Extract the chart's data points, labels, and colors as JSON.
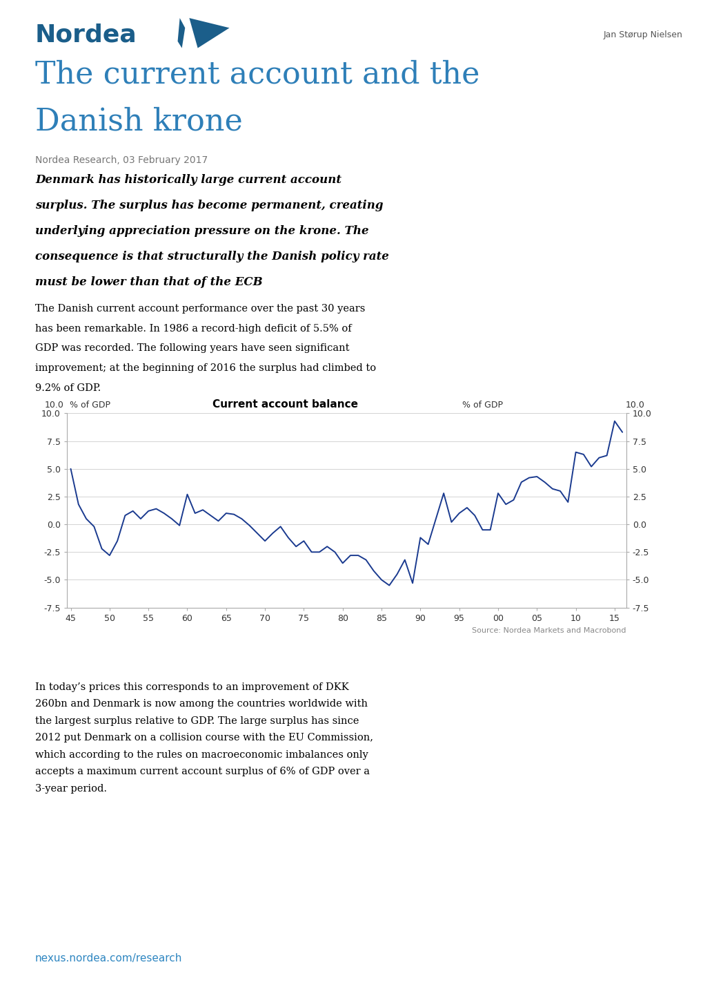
{
  "title_line1": "The current account and the",
  "title_line2": "Danish krone",
  "subtitle": "Nordea Research, 03 February 2017",
  "author": "Jan Størup Nielsen",
  "bold_text": "Denmark has historically large current account surplus. The surplus has become permanent, creating underlying appreciation pressure on the krone. The consequence is that structurally the Danish policy rate must be lower than that of the ECB",
  "para1": "The Danish current account performance over the past 30 years has been remarkable. In 1986 a record-high deficit of 5.5% of GDP was recorded. The following years have seen significant improvement; at the beginning of 2016 the surplus had climbed to 9.2% of GDP.",
  "para2": "In today’s prices this corresponds to an improvement of DKK 260bn and Denmark is now among the countries worldwide with the largest surplus relative to GDP. The large surplus has since 2012 put Denmark on a collision course with the EU Commission, which according to the rules on macroeconomic imbalances only accepts a maximum current account surplus of 6% of GDP over a 3-year period.",
  "chart_title": "Current account balance",
  "chart_ylabel_left": "% of GDP",
  "chart_ylabel_right": "% of GDP",
  "chart_source": "Source: Nordea Markets and Macrobond",
  "chart_color": "#1a3a8f",
  "chart_ylim": [
    -7.5,
    10.0
  ],
  "chart_yticks": [
    -7.5,
    -5.0,
    -2.5,
    0.0,
    2.5,
    5.0,
    7.5,
    10.0
  ],
  "chart_xtick_labels": [
    "45",
    "50",
    "55",
    "60",
    "65",
    "70",
    "75",
    "80",
    "85",
    "90",
    "95",
    "00",
    "05",
    "10",
    "15"
  ],
  "nordea_blue": "#1b5e8a",
  "title_blue": "#2e7fb8",
  "link_color": "#2e86c1",
  "link_text": "nexus.nordea.com/research",
  "x_data": [
    0,
    1,
    2,
    3,
    4,
    5,
    6,
    7,
    8,
    9,
    10,
    11,
    12,
    13,
    14,
    15,
    16,
    17,
    18,
    19,
    20,
    21,
    22,
    23,
    24,
    25,
    26,
    27,
    28,
    29,
    30,
    31,
    32,
    33,
    34,
    35,
    36,
    37,
    38,
    39,
    40,
    41,
    42,
    43,
    44,
    45,
    46,
    47,
    48,
    49,
    50,
    51,
    52,
    53,
    54,
    55,
    56,
    57,
    58,
    59,
    60,
    61,
    62,
    63,
    64,
    65,
    66,
    67,
    68,
    69,
    70,
    71
  ],
  "y_data": [
    5.0,
    1.8,
    0.5,
    -0.2,
    -2.2,
    -2.8,
    -1.5,
    0.8,
    1.2,
    0.5,
    1.2,
    1.4,
    1.0,
    0.5,
    -0.1,
    2.7,
    1.0,
    1.3,
    0.8,
    0.3,
    1.0,
    0.9,
    0.5,
    -0.1,
    -0.8,
    -1.5,
    -0.8,
    -0.2,
    -1.2,
    -2.0,
    -1.5,
    -2.5,
    -2.5,
    -2.0,
    -2.5,
    -3.5,
    -2.8,
    -2.8,
    -3.2,
    -4.2,
    -5.0,
    -5.5,
    -4.5,
    -3.2,
    -5.3,
    -1.2,
    -1.8,
    0.5,
    2.8,
    0.2,
    1.0,
    1.5,
    0.8,
    -0.5,
    -0.5,
    2.8,
    1.8,
    2.2,
    3.8,
    4.2,
    4.3,
    3.8,
    3.2,
    3.0,
    2.0,
    6.5,
    6.3,
    5.2,
    6.0,
    6.2,
    9.3,
    8.3
  ]
}
